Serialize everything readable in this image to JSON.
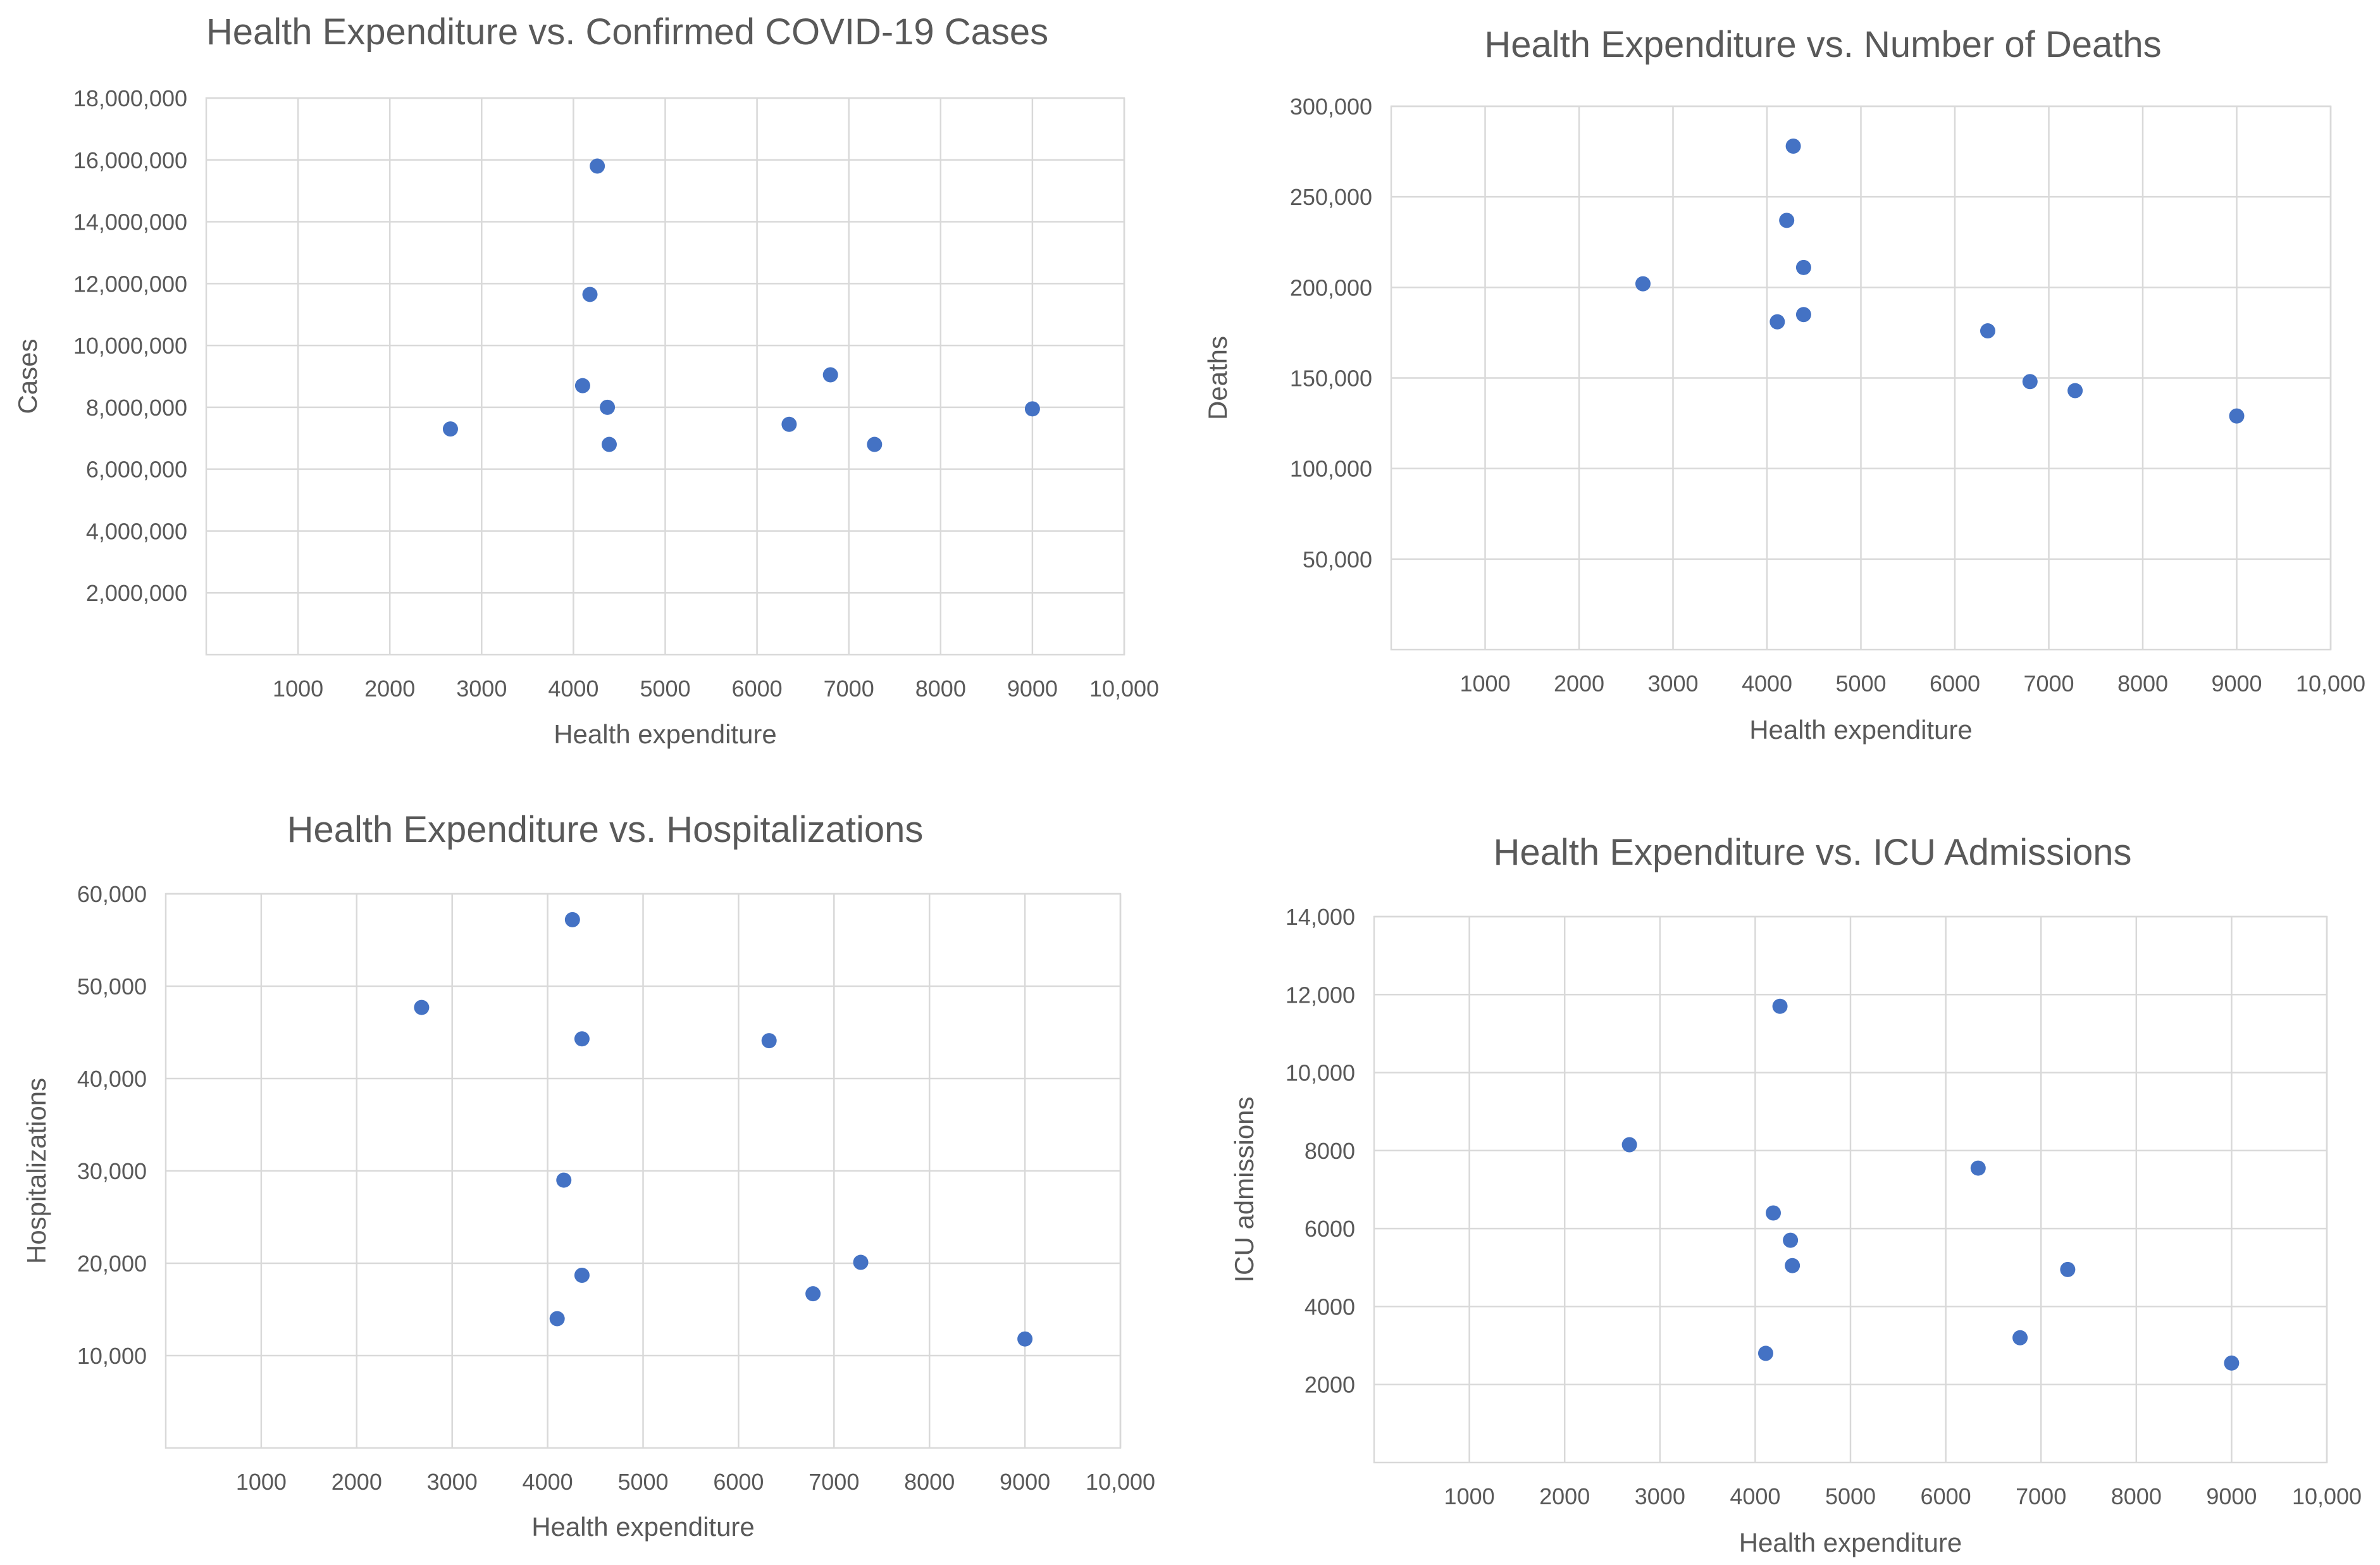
{
  "chart_data": [
    {
      "type": "scatter",
      "title": "Health Expenditure vs. Confirmed COVID-19 Cases",
      "xlabel": "Health expenditure",
      "ylabel": "Cases",
      "xlim": [
        0,
        10000
      ],
      "ylim": [
        0,
        18000000
      ],
      "x_ticks": [
        1000,
        2000,
        3000,
        4000,
        5000,
        6000,
        7000,
        8000,
        9000,
        10000
      ],
      "x_tick_labels": [
        "1000",
        "2000",
        "3000",
        "4000",
        "5000",
        "6000",
        "7000",
        "8000",
        "9000",
        "10,000"
      ],
      "y_ticks": [
        2000000,
        4000000,
        6000000,
        8000000,
        10000000,
        12000000,
        14000000,
        16000000,
        18000000
      ],
      "y_tick_labels": [
        "2,000,000",
        "4,000,000",
        "6,000,000",
        "8,000,000",
        "10,000,000",
        "12,000,000",
        "14,000,000",
        "16,000,000",
        "18,000,000"
      ],
      "grid": true,
      "marker_color": "#4472c4",
      "points": [
        {
          "x": 2660,
          "y": 7300000
        },
        {
          "x": 4100,
          "y": 8700000
        },
        {
          "x": 4180,
          "y": 11650000
        },
        {
          "x": 4260,
          "y": 15800000
        },
        {
          "x": 4370,
          "y": 8000000
        },
        {
          "x": 4390,
          "y": 6800000
        },
        {
          "x": 6350,
          "y": 7450000
        },
        {
          "x": 6800,
          "y": 9050000
        },
        {
          "x": 7280,
          "y": 6800000
        },
        {
          "x": 9000,
          "y": 7950000
        }
      ]
    },
    {
      "type": "scatter",
      "title": "Health Expenditure vs. Number of Deaths",
      "xlabel": "Health expenditure",
      "ylabel": "Deaths",
      "xlim": [
        0,
        10000
      ],
      "ylim": [
        0,
        300000
      ],
      "x_ticks": [
        1000,
        2000,
        3000,
        4000,
        5000,
        6000,
        7000,
        8000,
        9000,
        10000
      ],
      "x_tick_labels": [
        "1000",
        "2000",
        "3000",
        "4000",
        "5000",
        "6000",
        "7000",
        "8000",
        "9000",
        "10,000"
      ],
      "y_ticks": [
        50000,
        100000,
        150000,
        200000,
        250000,
        300000
      ],
      "y_tick_labels": [
        "50,000",
        "100,000",
        "150,000",
        "200,000",
        "250,000",
        "300,000"
      ],
      "grid": true,
      "marker_color": "#4472c4",
      "points": [
        {
          "x": 2680,
          "y": 202000
        },
        {
          "x": 4110,
          "y": 181000
        },
        {
          "x": 4210,
          "y": 237000
        },
        {
          "x": 4280,
          "y": 278000
        },
        {
          "x": 4390,
          "y": 211000
        },
        {
          "x": 4390,
          "y": 185000
        },
        {
          "x": 6350,
          "y": 176000
        },
        {
          "x": 6800,
          "y": 148000
        },
        {
          "x": 7280,
          "y": 143000
        },
        {
          "x": 9000,
          "y": 129000
        }
      ]
    },
    {
      "type": "scatter",
      "title": "Health Expenditure vs. Hospitalizations",
      "xlabel": "Health expenditure",
      "ylabel": "Hospitalizations",
      "xlim": [
        0,
        10000
      ],
      "ylim": [
        0,
        60000
      ],
      "x_ticks": [
        1000,
        2000,
        3000,
        4000,
        5000,
        6000,
        7000,
        8000,
        9000,
        10000
      ],
      "x_tick_labels": [
        "1000",
        "2000",
        "3000",
        "4000",
        "5000",
        "6000",
        "7000",
        "8000",
        "9000",
        "10,000"
      ],
      "y_ticks": [
        10000,
        20000,
        30000,
        40000,
        50000,
        60000
      ],
      "y_tick_labels": [
        "10,000",
        "20,000",
        "30,000",
        "40,000",
        "50,000",
        "60,000"
      ],
      "grid": true,
      "marker_color": "#4472c4",
      "points": [
        {
          "x": 2680,
          "y": 47700
        },
        {
          "x": 4100,
          "y": 14000
        },
        {
          "x": 4170,
          "y": 29000
        },
        {
          "x": 4260,
          "y": 57200
        },
        {
          "x": 4360,
          "y": 44300
        },
        {
          "x": 4360,
          "y": 18700
        },
        {
          "x": 6320,
          "y": 44100
        },
        {
          "x": 6780,
          "y": 16700
        },
        {
          "x": 7280,
          "y": 20100
        },
        {
          "x": 9000,
          "y": 11800
        }
      ]
    },
    {
      "type": "scatter",
      "title": "Health Expenditure vs. ICU Admissions",
      "xlabel": "Health expenditure",
      "ylabel": "ICU admissions",
      "xlim": [
        0,
        10000
      ],
      "ylim": [
        0,
        14000
      ],
      "x_ticks": [
        1000,
        2000,
        3000,
        4000,
        5000,
        6000,
        7000,
        8000,
        9000,
        10000
      ],
      "x_tick_labels": [
        "1000",
        "2000",
        "3000",
        "4000",
        "5000",
        "6000",
        "7000",
        "8000",
        "9000",
        "10,000"
      ],
      "y_ticks": [
        2000,
        4000,
        6000,
        8000,
        10000,
        12000,
        14000
      ],
      "y_tick_labels": [
        "2000",
        "4000",
        "6000",
        "8000",
        "10,000",
        "12,000",
        "14,000"
      ],
      "grid": true,
      "marker_color": "#4472c4",
      "points": [
        {
          "x": 2680,
          "y": 8150
        },
        {
          "x": 4110,
          "y": 2800
        },
        {
          "x": 4190,
          "y": 6400
        },
        {
          "x": 4260,
          "y": 11700
        },
        {
          "x": 4370,
          "y": 5700
        },
        {
          "x": 4390,
          "y": 5050
        },
        {
          "x": 6340,
          "y": 7550
        },
        {
          "x": 6780,
          "y": 3200
        },
        {
          "x": 7280,
          "y": 4950
        },
        {
          "x": 9000,
          "y": 2550
        }
      ]
    }
  ]
}
